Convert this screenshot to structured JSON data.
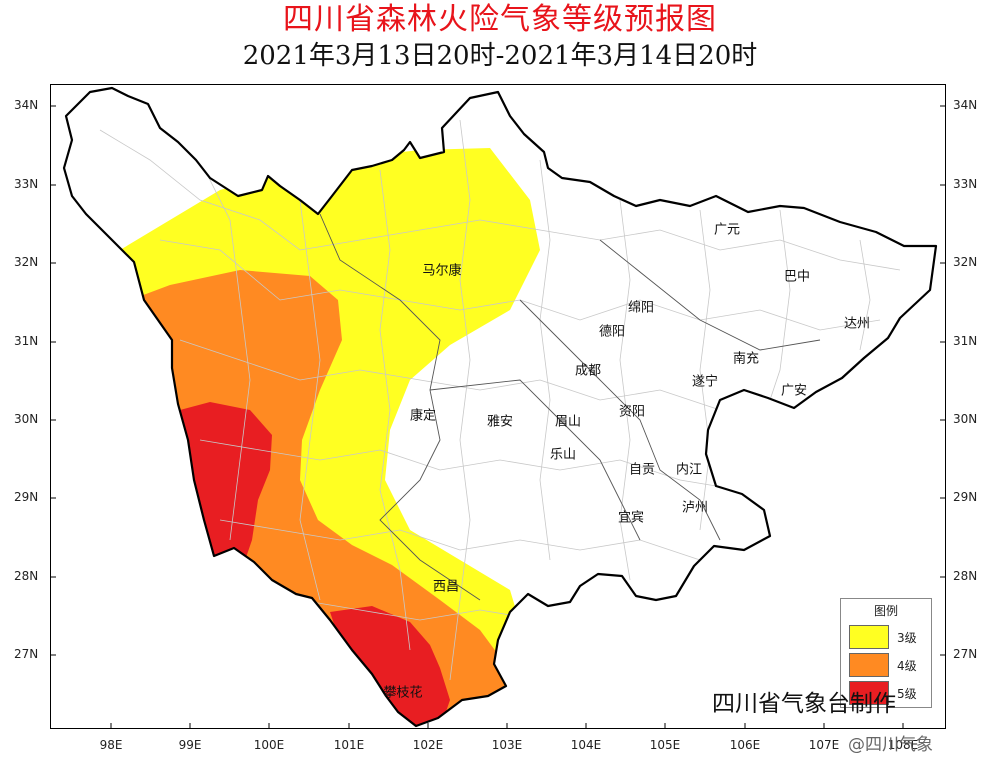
{
  "title": "四川省森林火险气象等级预报图",
  "subtitle": "2021年3月13日20时-2021年3月14日20时",
  "lat_ticks": [
    "34N",
    "33N",
    "32N",
    "31N",
    "30N",
    "29N",
    "28N",
    "27N"
  ],
  "lon_ticks": [
    "98E",
    "99E",
    "100E",
    "101E",
    "102E",
    "103E",
    "104E",
    "105E",
    "106E",
    "107E",
    "108E"
  ],
  "cities": {
    "maerkang": "马尔康",
    "guangyuan": "广元",
    "bazhong": "巴中",
    "mianyang": "绵阳",
    "deyang": "德阳",
    "dazhou": "达州",
    "chengdu": "成都",
    "nanchong": "南充",
    "suining": "遂宁",
    "guangan": "广安",
    "kangding": "康定",
    "yaan": "雅安",
    "meishan": "眉山",
    "ziyang": "资阳",
    "leshan": "乐山",
    "zigong": "自贡",
    "neijiang": "内江",
    "luzhou": "泸州",
    "yibin": "宜宾",
    "xichang": "西昌",
    "panzhihua": "攀枝花"
  },
  "legend": {
    "title": "图例",
    "items": [
      {
        "label": "3级",
        "color": "#ffff22"
      },
      {
        "label": "4级",
        "color": "#ff8a22"
      },
      {
        "label": "5级",
        "color": "#e81e22"
      }
    ]
  },
  "maker": "四川省气象台制作",
  "watermark": "@四川气象",
  "colors": {
    "title": "#e8141b",
    "level3": "#ffff22",
    "level4": "#ff8a22",
    "level5": "#e81e22",
    "boundary": "#000000",
    "county_lines": "#cccccc"
  }
}
